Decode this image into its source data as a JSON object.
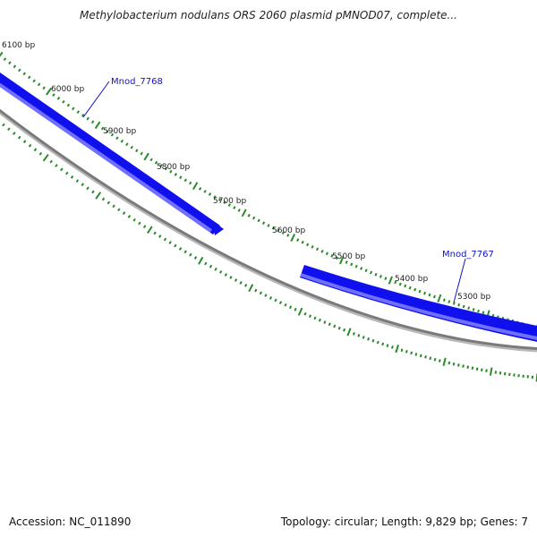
{
  "title": "Methylobacterium nodulans ORS 2060 plasmid pMNOD07, complete...",
  "footer": {
    "accession_text": "Accession: NC_011890",
    "summary_text": "Topology: circular; Length: 9,829 bp; Genes: 7"
  },
  "map": {
    "tick_labels": [
      {
        "label": "6100 bp"
      },
      {
        "label": "6000 bp"
      },
      {
        "label": "5900 bp"
      },
      {
        "label": "5800 bp"
      },
      {
        "label": "5700 bp"
      },
      {
        "label": "5600 bp"
      },
      {
        "label": "5500 bp"
      },
      {
        "label": "5400 bp"
      },
      {
        "label": "5300 bp"
      }
    ],
    "genes": [
      {
        "name": "Mnod_7768"
      },
      {
        "name": "Mnod_7767"
      }
    ],
    "colors": {
      "backbone": "#808080",
      "gene_fill": "#1010ee",
      "gene_highlight": "#7070ff",
      "tick": "#2a8a2a",
      "label_line": "#1010cc"
    }
  }
}
